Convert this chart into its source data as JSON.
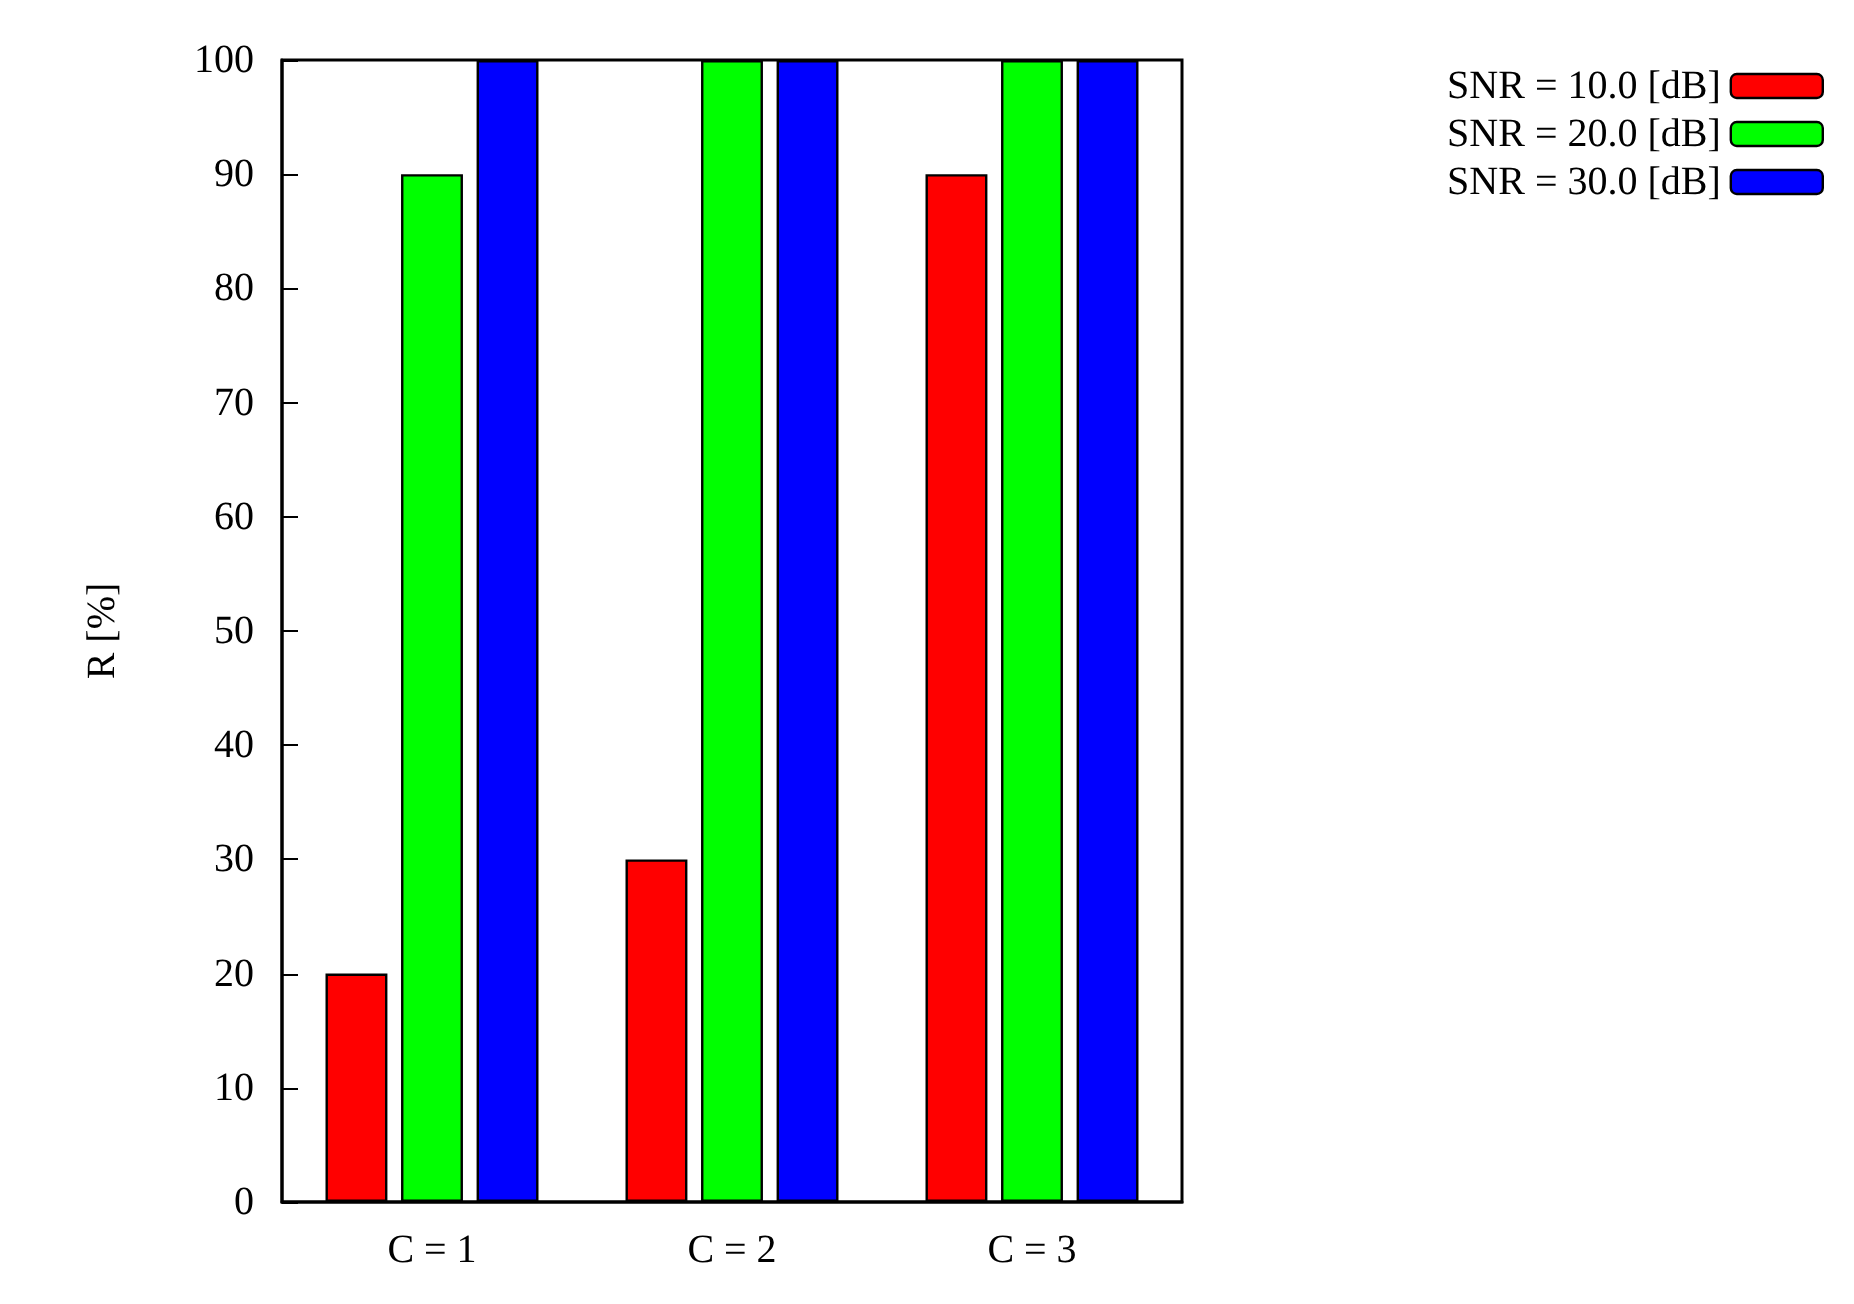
{
  "chart_data": {
    "type": "bar",
    "ylabel": "R [%]",
    "categories": [
      "C = 1",
      "C = 2",
      "C = 3"
    ],
    "series": [
      {
        "name": "SNR = 10.0 [dB]",
        "color": "#ff0000",
        "values": [
          20,
          30,
          90
        ]
      },
      {
        "name": "SNR = 20.0 [dB]",
        "color": "#00ff00",
        "values": [
          90,
          100,
          100
        ]
      },
      {
        "name": "SNR = 30.0 [dB]",
        "color": "#0000ff",
        "values": [
          100,
          100,
          100
        ]
      }
    ],
    "ylim": [
      0,
      100
    ],
    "yticks": [
      0,
      10,
      20,
      30,
      40,
      50,
      60,
      70,
      80,
      90,
      100
    ],
    "grid": false,
    "legend": "top right"
  }
}
